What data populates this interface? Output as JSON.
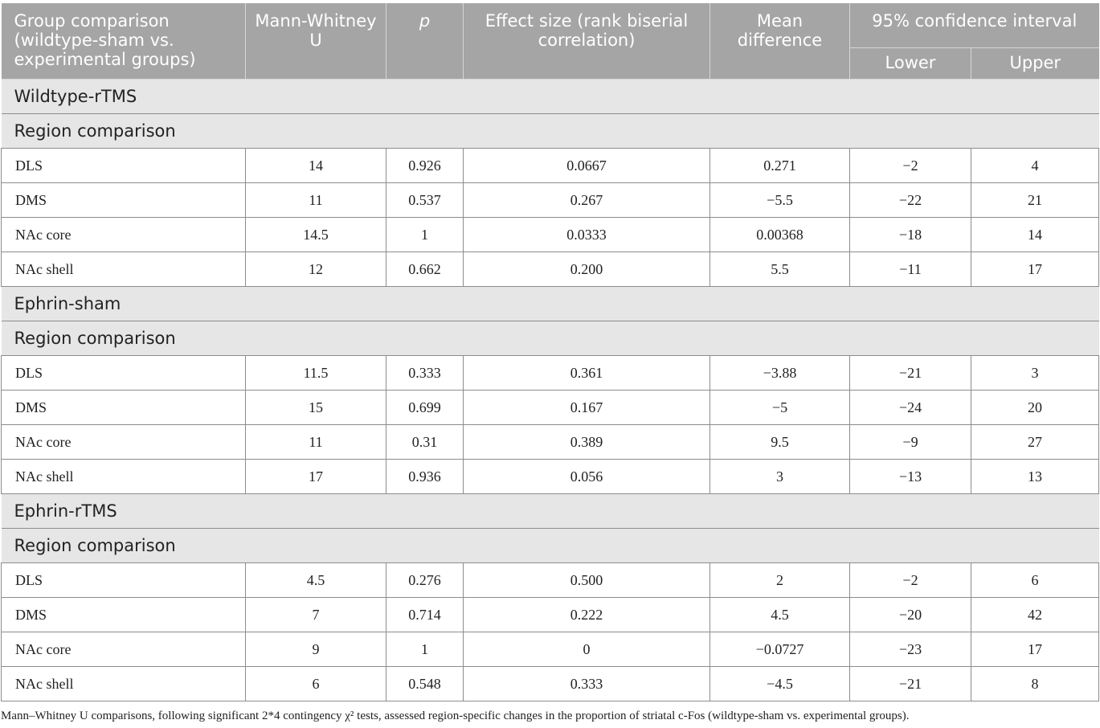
{
  "header": {
    "group_comparison": "Group comparison (wildtype-sham vs. experimental groups)",
    "mann_whitney": "Mann-Whitney U",
    "p": "p",
    "effect_size": "Effect size (rank biserial correlation)",
    "mean_difference": "Mean difference",
    "ci": "95% confidence interval",
    "lower": "Lower",
    "upper": "Upper"
  },
  "groups": [
    {
      "title": "Wildtype-rTMS",
      "subtitle": "Region comparison",
      "rows": [
        {
          "region": "DLS",
          "u": "14",
          "p": "0.926",
          "effect": "0.0667",
          "mean": "0.271",
          "lower": "−2",
          "upper": "4"
        },
        {
          "region": "DMS",
          "u": "11",
          "p": "0.537",
          "effect": "0.267",
          "mean": "−5.5",
          "lower": "−22",
          "upper": "21"
        },
        {
          "region": "NAc core",
          "u": "14.5",
          "p": "1",
          "effect": "0.0333",
          "mean": "0.00368",
          "lower": "−18",
          "upper": "14"
        },
        {
          "region": "NAc shell",
          "u": "12",
          "p": "0.662",
          "effect": "0.200",
          "mean": "5.5",
          "lower": "−11",
          "upper": "17"
        }
      ]
    },
    {
      "title": "Ephrin-sham",
      "subtitle": "Region comparison",
      "rows": [
        {
          "region": "DLS",
          "u": "11.5",
          "p": "0.333",
          "effect": "0.361",
          "mean": "−3.88",
          "lower": "−21",
          "upper": "3"
        },
        {
          "region": "DMS",
          "u": "15",
          "p": "0.699",
          "effect": "0.167",
          "mean": "−5",
          "lower": "−24",
          "upper": "20"
        },
        {
          "region": "NAc core",
          "u": "11",
          "p": "0.31",
          "effect": "0.389",
          "mean": "9.5",
          "lower": "−9",
          "upper": "27"
        },
        {
          "region": "NAc shell",
          "u": "17",
          "p": "0.936",
          "effect": "0.056",
          "mean": "3",
          "lower": "−13",
          "upper": "13"
        }
      ]
    },
    {
      "title": "Ephrin-rTMS",
      "subtitle": "Region comparison",
      "rows": [
        {
          "region": "DLS",
          "u": "4.5",
          "p": "0.276",
          "effect": "0.500",
          "mean": "2",
          "lower": "−2",
          "upper": "6"
        },
        {
          "region": "DMS",
          "u": "7",
          "p": "0.714",
          "effect": "0.222",
          "mean": "4.5",
          "lower": "−20",
          "upper": "42"
        },
        {
          "region": "NAc core",
          "u": "9",
          "p": "1",
          "effect": "0",
          "mean": "−0.0727",
          "lower": "−23",
          "upper": "17"
        },
        {
          "region": "NAc shell",
          "u": "6",
          "p": "0.548",
          "effect": "0.333",
          "mean": "−4.5",
          "lower": "−21",
          "upper": "8"
        }
      ]
    }
  ],
  "caption": "Mann–Whitney U comparisons, following significant 2*4 contingency χ² tests, assessed region-specific changes in the proportion of striatal c-Fos (wildtype-sham vs. experimental groups)."
}
